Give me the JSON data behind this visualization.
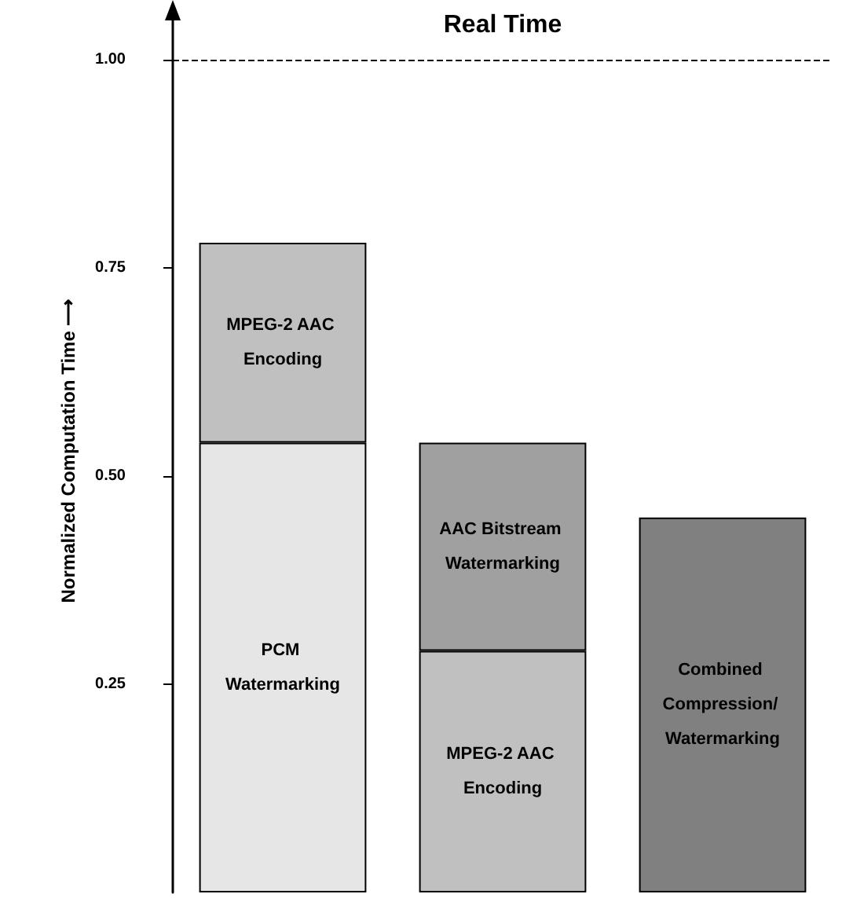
{
  "chart_data": {
    "type": "bar",
    "stacked": true,
    "ylabel": "Normalized Computation Time ⟶",
    "categories": [
      null,
      null,
      null
    ],
    "series": [
      {
        "name": "PCM Watermarking",
        "color": "#e6e6e6",
        "values": [
          0.54,
          null,
          null
        ]
      },
      {
        "name": "MPEG-2 AAC Encoding",
        "color": "#c0c0c0",
        "values": [
          0.24,
          0.29,
          null
        ]
      },
      {
        "name": "AAC Bitstream Watermarking",
        "color": "#a0a0a0",
        "values": [
          null,
          0.25,
          null
        ]
      },
      {
        "name": "Combined Compression/ Watermarking",
        "color": "#808080",
        "values": [
          null,
          null,
          0.45
        ]
      }
    ],
    "ylim": [
      0,
      1.06
    ],
    "yticks": [
      {
        "value": 0.25,
        "label": "0.25"
      },
      {
        "value": 0.5,
        "label": "0.50"
      },
      {
        "value": 0.75,
        "label": "0.75"
      },
      {
        "value": 1.0,
        "label": "1.00"
      }
    ],
    "ref_lines": [
      {
        "axis": "y",
        "value": 1.0,
        "label": "Real Time",
        "line_style": "dashed",
        "color": "#000000"
      }
    ],
    "grid": false,
    "legend": false
  }
}
